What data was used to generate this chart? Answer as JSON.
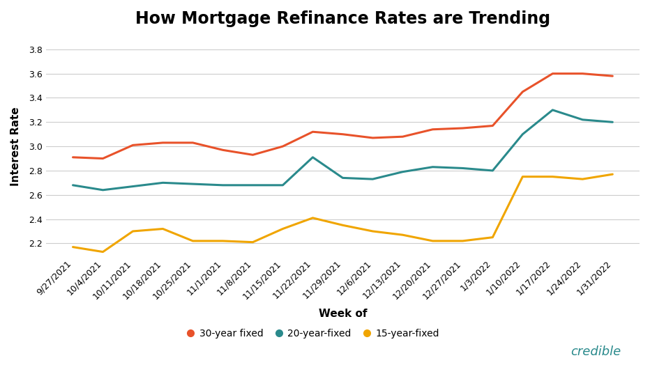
{
  "title": "How Mortgage Refinance Rates are Trending",
  "xlabel": "Week of",
  "ylabel": "Interest Rate",
  "x_labels": [
    "9/27/2021",
    "10/4/2021",
    "10/11/2021",
    "10/18/2021",
    "10/25/2021",
    "11/1/2021",
    "11/8/2021",
    "11/15/2021",
    "11/22/2021",
    "11/29/2021",
    "12/6/2021",
    "12/13/2021",
    "12/20/2021",
    "12/27/2021",
    "1/3/2022",
    "1/10/2022",
    "1/17/2022",
    "1/24/2022",
    "1/31/2022"
  ],
  "series_30yr": [
    2.91,
    2.9,
    3.01,
    3.03,
    3.03,
    2.97,
    2.93,
    3.0,
    3.12,
    3.1,
    3.07,
    3.08,
    3.14,
    3.15,
    3.17,
    3.45,
    3.6,
    3.6,
    3.58
  ],
  "series_20yr": [
    2.68,
    2.64,
    2.67,
    2.7,
    2.69,
    2.68,
    2.68,
    2.68,
    2.91,
    2.74,
    2.73,
    2.79,
    2.83,
    2.82,
    2.8,
    3.1,
    3.3,
    3.22,
    3.2
  ],
  "series_15yr": [
    2.17,
    2.13,
    2.3,
    2.32,
    2.22,
    2.22,
    2.21,
    2.32,
    2.41,
    2.35,
    2.3,
    2.27,
    2.22,
    2.22,
    2.25,
    2.75,
    2.75,
    2.73,
    2.77
  ],
  "color_30yr": "#E8522A",
  "color_20yr": "#2A8A8C",
  "color_15yr": "#F0A500",
  "ylim": [
    2.1,
    3.9
  ],
  "yticks": [
    2.2,
    2.4,
    2.6,
    2.8,
    3.0,
    3.2,
    3.4,
    3.6,
    3.8
  ],
  "legend_labels": [
    "30-year fixed",
    "20-year-fixed",
    "15-year-fixed"
  ],
  "bg_color": "#FFFFFF",
  "grid_color": "#CCCCCC",
  "title_fontsize": 17,
  "label_fontsize": 11,
  "tick_fontsize": 9,
  "line_width": 2.2,
  "credible_text": "credible",
  "credible_color": "#2A8A8C"
}
